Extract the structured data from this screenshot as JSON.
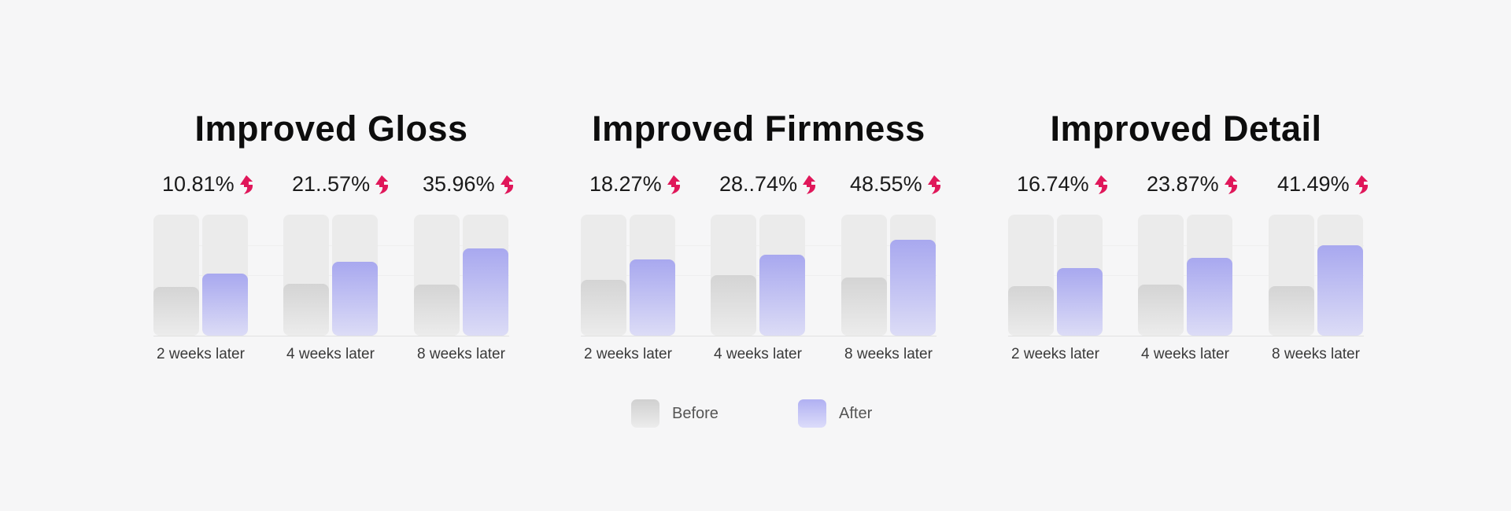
{
  "chart_data": [
    {
      "type": "bar",
      "title": "Improved Gloss",
      "categories": [
        "2 weeks later",
        "4 weeks later",
        "8 weeks later"
      ],
      "series": [
        {
          "name": "Before",
          "values": [
            40,
            43,
            42
          ]
        },
        {
          "name": "After",
          "values": [
            51,
            61,
            72
          ]
        }
      ],
      "annotations": [
        "10.81%",
        "21..57%",
        "35.96%"
      ],
      "ylim": [
        0,
        100
      ]
    },
    {
      "type": "bar",
      "title": "Improved Firmness",
      "categories": [
        "2 weeks later",
        "4 weeks later",
        "8 weeks later"
      ],
      "series": [
        {
          "name": "Before",
          "values": [
            46,
            50,
            48
          ]
        },
        {
          "name": "After",
          "values": [
            63,
            67,
            79
          ]
        }
      ],
      "annotations": [
        "18.27%",
        "28..74%",
        "48.55%"
      ],
      "ylim": [
        0,
        100
      ]
    },
    {
      "type": "bar",
      "title": "Improved Detail",
      "categories": [
        "2 weeks later",
        "4 weeks later",
        "8 weeks later"
      ],
      "series": [
        {
          "name": "Before",
          "values": [
            41,
            42,
            41
          ]
        },
        {
          "name": "After",
          "values": [
            56,
            64,
            75
          ]
        }
      ],
      "annotations": [
        "16.74%",
        "23.87%",
        "41.49%"
      ],
      "ylim": [
        0,
        100
      ]
    }
  ],
  "legend": {
    "before_label": "Before",
    "after_label": "After"
  },
  "colors": {
    "before": "#d4d4d4",
    "after": "#a8a8ef",
    "track": "#ebebeb",
    "arrow": "#e0175a"
  },
  "icons": {
    "increase": "double-up-arrow-icon"
  }
}
